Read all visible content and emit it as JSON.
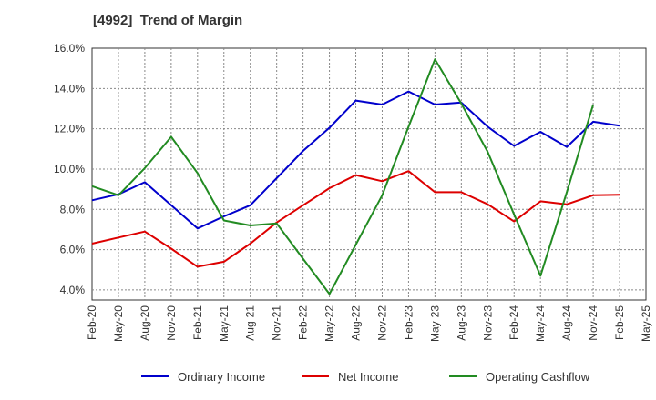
{
  "chart_data": {
    "type": "line",
    "title": "[4992]  Trend of Margin",
    "xlabel": "",
    "ylabel": "",
    "x_ticks": [
      "Feb-20",
      "May-20",
      "Aug-20",
      "Nov-20",
      "Feb-21",
      "May-21",
      "Aug-21",
      "Nov-21",
      "Feb-22",
      "May-22",
      "Aug-22",
      "Nov-22",
      "Feb-23",
      "May-23",
      "Aug-23",
      "Nov-23",
      "Feb-24",
      "May-24",
      "Aug-24",
      "Nov-24",
      "Feb-25",
      "May-25"
    ],
    "ylim": [
      3.5,
      16.0
    ],
    "y_ticks": [
      4.0,
      6.0,
      8.0,
      10.0,
      12.0,
      14.0,
      16.0
    ],
    "y_tick_labels": [
      "4.0%",
      "6.0%",
      "8.0%",
      "10.0%",
      "12.0%",
      "14.0%",
      "16.0%"
    ],
    "grid": true,
    "legend_position": "bottom",
    "series": [
      {
        "name": "Ordinary Income",
        "color": "#0000cc",
        "values": [
          8.45,
          8.75,
          9.35,
          8.2,
          7.05,
          7.65,
          8.2,
          9.55,
          10.9,
          12.05,
          13.4,
          13.2,
          13.85,
          13.2,
          13.3,
          12.1,
          11.15,
          11.85,
          11.1,
          12.35,
          12.15,
          null
        ]
      },
      {
        "name": "Net Income",
        "color": "#dd0000",
        "values": [
          6.3,
          6.6,
          6.9,
          6.05,
          5.15,
          5.4,
          6.3,
          7.35,
          8.2,
          9.05,
          9.7,
          9.4,
          9.9,
          8.85,
          8.85,
          8.25,
          7.4,
          8.4,
          8.25,
          8.7,
          8.72,
          null
        ]
      },
      {
        "name": "Operating Cashflow",
        "color": "#228B22",
        "values": [
          9.15,
          8.7,
          10.05,
          11.6,
          9.8,
          7.45,
          7.2,
          7.3,
          5.55,
          3.8,
          6.25,
          8.7,
          12.1,
          15.45,
          13.25,
          10.85,
          7.75,
          4.7,
          8.85,
          13.2,
          null,
          null
        ]
      }
    ]
  }
}
